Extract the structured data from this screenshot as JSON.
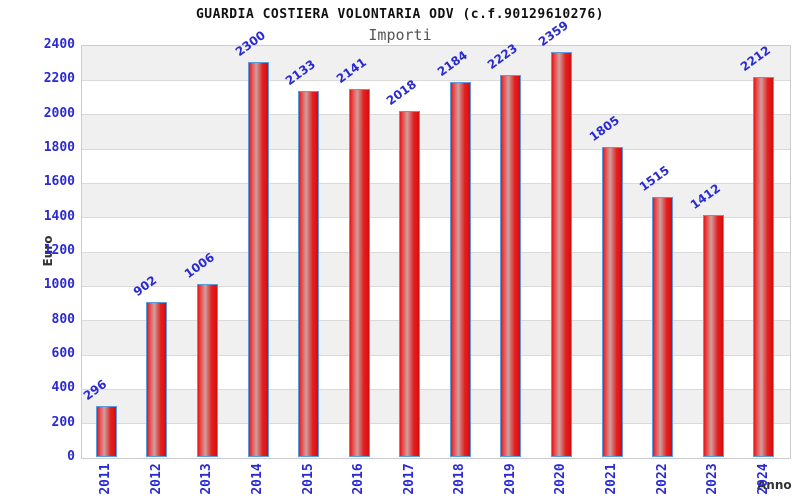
{
  "chart_data": {
    "type": "bar",
    "title": "GUARDIA COSTIERA VOLONTARIA ODV (c.f.90129610276)",
    "subtitle": "Importi",
    "xlabel": "Anno",
    "ylabel": "Euro",
    "categories": [
      "2011",
      "2012",
      "2013",
      "2014",
      "2015",
      "2016",
      "2017",
      "2018",
      "2019",
      "2020",
      "2021",
      "2022",
      "2023",
      "2024"
    ],
    "values": [
      296,
      902,
      1006,
      2300,
      2133,
      2141,
      2018,
      2184,
      2223,
      2359,
      1805,
      1515,
      1412,
      2212
    ],
    "ylim": [
      0,
      2400
    ],
    "ytick_step": 200,
    "grid": true,
    "legend": "none",
    "bands_alternating": true,
    "colors": {
      "label_blue": "#2a2ad2",
      "bar_border": "#5b9be0",
      "bar_red": "#e31414",
      "bar_red_dark": "#c51010",
      "bar_highlight": "#cf9f9f",
      "band_gray": "#f0f0f0",
      "gridline": "#dadada",
      "plot_border": "#cccccc",
      "title_color": "#111111",
      "subtitle_color": "#555555",
      "axis_title_color": "#333333"
    }
  }
}
